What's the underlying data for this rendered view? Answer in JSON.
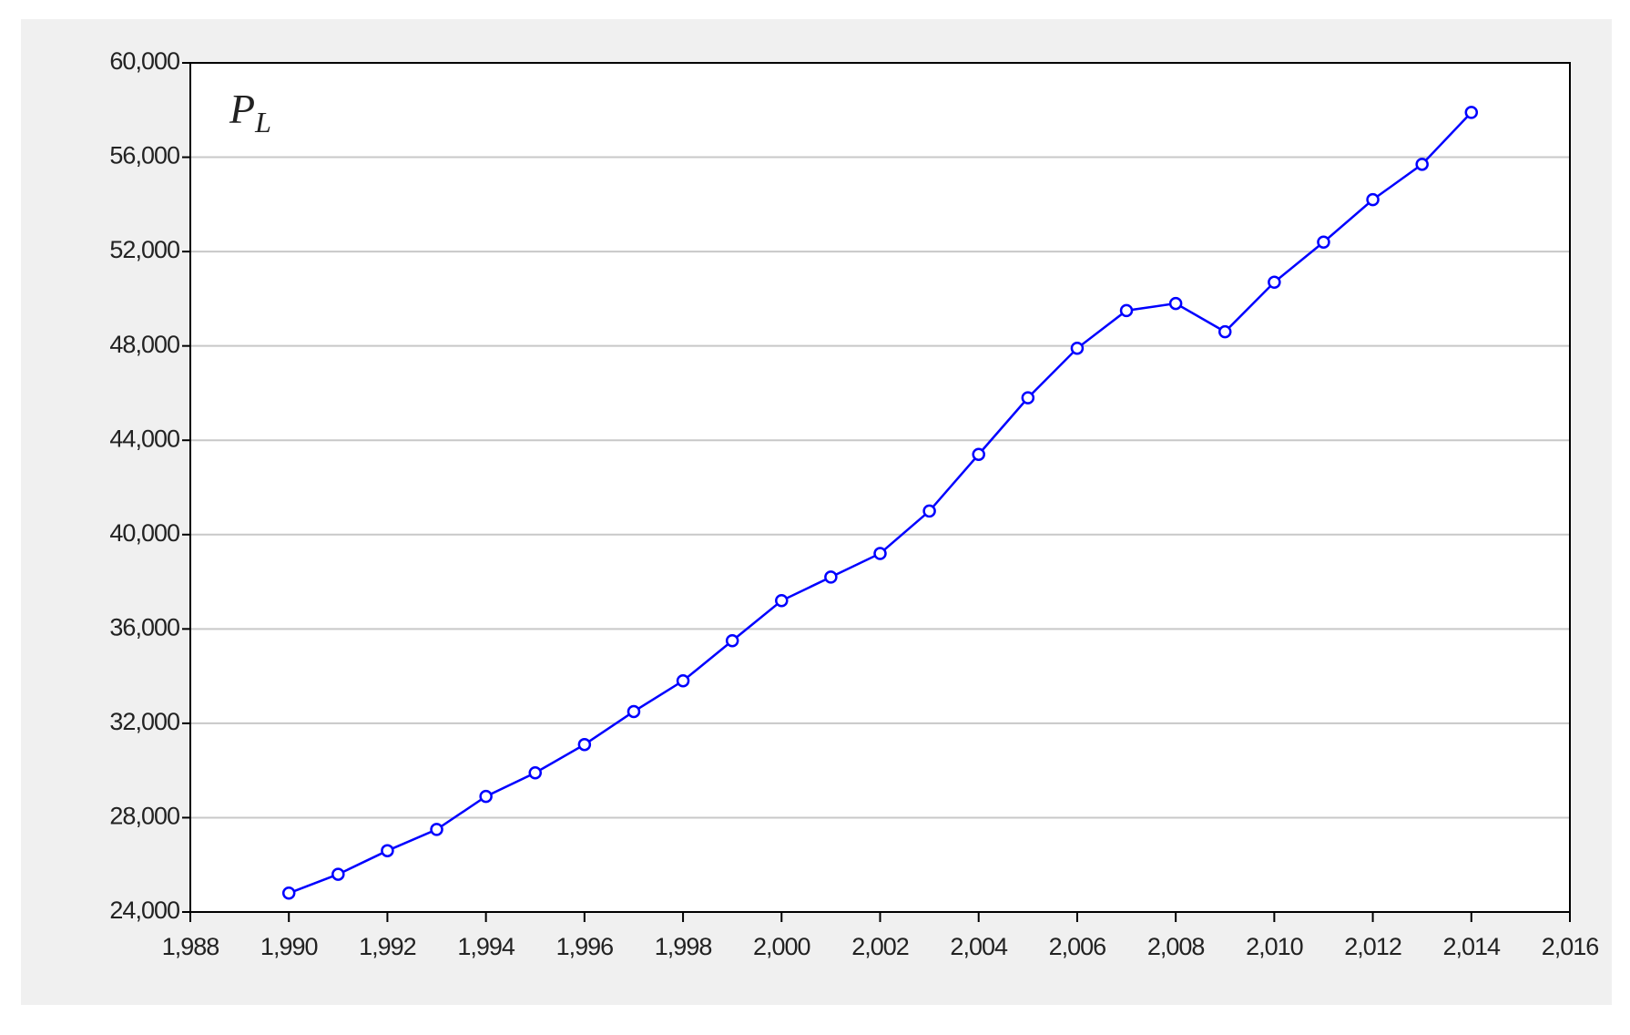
{
  "chart_data": {
    "type": "line",
    "annotation": {
      "text": "P",
      "subscript": "L"
    },
    "x": [
      1990,
      1991,
      1992,
      1993,
      1994,
      1995,
      1996,
      1997,
      1998,
      1999,
      2000,
      2001,
      2002,
      2003,
      2004,
      2005,
      2006,
      2007,
      2008,
      2009,
      2010,
      2011,
      2012,
      2013,
      2014
    ],
    "series": [
      {
        "color": "#0000ff",
        "values": [
          24800,
          25600,
          26600,
          27500,
          28900,
          29900,
          31100,
          32500,
          33800,
          35500,
          37200,
          38200,
          39200,
          41000,
          43400,
          45800,
          47900,
          49500,
          49800,
          48600,
          50700,
          52400,
          54200,
          55700,
          57900
        ]
      }
    ],
    "xlim": [
      1988,
      2016
    ],
    "xticks": [
      {
        "value": 1988,
        "label": "1,988"
      },
      {
        "value": 1990,
        "label": "1,990"
      },
      {
        "value": 1992,
        "label": "1,992"
      },
      {
        "value": 1994,
        "label": "1,994"
      },
      {
        "value": 1996,
        "label": "1,996"
      },
      {
        "value": 1998,
        "label": "1,998"
      },
      {
        "value": 2000,
        "label": "2,000"
      },
      {
        "value": 2002,
        "label": "2,002"
      },
      {
        "value": 2004,
        "label": "2,004"
      },
      {
        "value": 2006,
        "label": "2,006"
      },
      {
        "value": 2008,
        "label": "2,008"
      },
      {
        "value": 2010,
        "label": "2,010"
      },
      {
        "value": 2012,
        "label": "2,012"
      },
      {
        "value": 2014,
        "label": "2,014"
      },
      {
        "value": 2016,
        "label": "2,016"
      }
    ],
    "ylim": [
      24000,
      60000
    ],
    "yticks": [
      {
        "value": 24000,
        "label": "24,000"
      },
      {
        "value": 28000,
        "label": "28,000"
      },
      {
        "value": 32000,
        "label": "32,000"
      },
      {
        "value": 36000,
        "label": "36,000"
      },
      {
        "value": 40000,
        "label": "40,000"
      },
      {
        "value": 44000,
        "label": "44,000"
      },
      {
        "value": 48000,
        "label": "48,000"
      },
      {
        "value": 52000,
        "label": "52,000"
      },
      {
        "value": 56000,
        "label": "56,000"
      },
      {
        "value": 60000,
        "label": "60,000"
      }
    ],
    "grid": true,
    "markers": true
  }
}
